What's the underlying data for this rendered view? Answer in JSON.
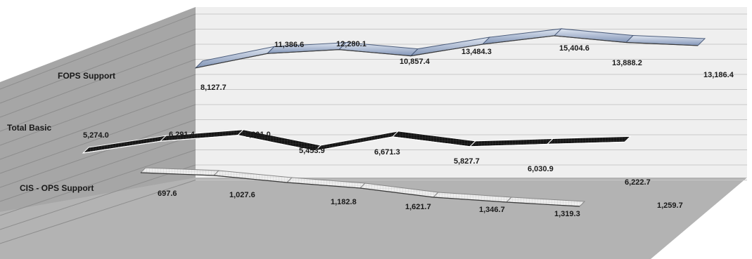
{
  "chart_data": {
    "type": "line",
    "style": "3d-ribbon",
    "grid": true,
    "series": [
      {
        "name": "FOPS Support",
        "values": [
          8127.7,
          11386.6,
          12280.1,
          10857.4,
          13484.3,
          15404.6,
          13888.2,
          13186.4
        ],
        "labels": [
          "8,127.7",
          "11,386.6",
          "12,280.1",
          "10,857.4",
          "13,484.3",
          "15,404.6",
          "13,888.2",
          "13,186.4"
        ],
        "color": "#8ea3c4"
      },
      {
        "name": "Total Basic",
        "values": [
          5274.0,
          6291.4,
          6801.0,
          5453.9,
          6671.3,
          5827.7,
          6030.9,
          6222.7
        ],
        "labels": [
          "5,274.0",
          "6,291.4",
          "6,801.0",
          "5,453.9",
          "6,671.3",
          "5,827.7",
          "6,030.9",
          "6,222.7"
        ],
        "color": "#111111"
      },
      {
        "name": "CIS - OPS Support",
        "values": [
          697.6,
          1027.6,
          1182.8,
          1621.7,
          1346.7,
          1319.3,
          1259.7
        ],
        "labels": [
          "697.6",
          "1,027.6",
          "1,182.8",
          "1,621.7",
          "1,346.7",
          "1,319.3",
          "1,259.7"
        ],
        "color": "#dcdcdc"
      }
    ]
  },
  "colors": {
    "back_wall": "#efefef",
    "side_wall": "#a6a6a6",
    "floor": "#b3b3b3",
    "gridline": "#c8c8c8"
  }
}
